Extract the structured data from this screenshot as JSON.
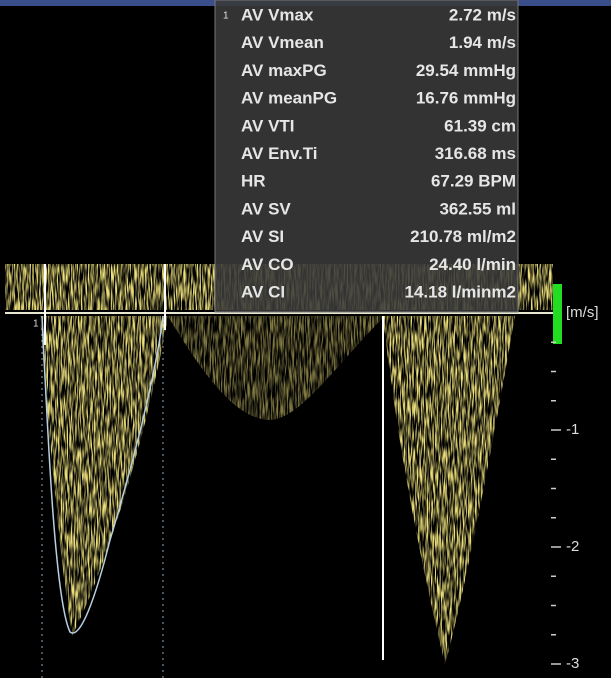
{
  "measurements": {
    "marker": "1",
    "rows": [
      {
        "label": "AV Vmax",
        "value": "2.72 m/s"
      },
      {
        "label": "AV Vmean",
        "value": "1.94 m/s"
      },
      {
        "label": "AV maxPG",
        "value": "29.54 mmHg"
      },
      {
        "label": "AV meanPG",
        "value": "16.76 mmHg"
      },
      {
        "label": "AV VTI",
        "value": "61.39 cm"
      },
      {
        "label": "AV Env.Ti",
        "value": "316.68 ms"
      },
      {
        "label": "HR",
        "value": "67.29 BPM"
      },
      {
        "label": "AV SV",
        "value": "362.55 ml"
      },
      {
        "label": "AV SI",
        "value": "210.78 ml/m2"
      },
      {
        "label": "AV CO",
        "value": "24.40 l/min"
      },
      {
        "label": "AV CI",
        "value": "14.18 l/minm2"
      }
    ]
  },
  "scale": {
    "unit": "[m/s]",
    "labels": [
      "-1",
      "-2",
      "-3"
    ]
  }
}
